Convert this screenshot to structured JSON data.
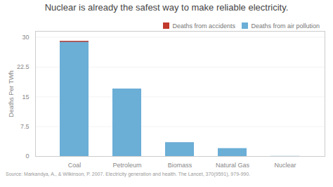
{
  "chart_data": {
    "type": "bar",
    "title": "Nuclear is already the safest way to make reliable electricity.",
    "ylabel": "Deaths Per TWh",
    "source": "Source: Markandya, A., & Wilkinson, P. 2007. Electricity generation and health. The Lancet, 370(9591), 979-990.",
    "categories": [
      "Coal",
      "Petroleum",
      "Biomass",
      "Natural Gas",
      "Nuclear"
    ],
    "series": [
      {
        "name": "Deaths from accidents",
        "color": "#c0392b",
        "values": [
          0.25,
          null,
          null,
          null,
          null
        ],
        "bottom": [
          28.75,
          null,
          null,
          null,
          null
        ]
      },
      {
        "name": "Deaths from air pollution",
        "color": "#6baed6",
        "values": [
          29.0,
          17.0,
          3.5,
          2.0,
          0.04
        ]
      }
    ],
    "ylim": [
      0,
      31.5
    ],
    "yticks": [
      0,
      7.5,
      15,
      22.5,
      30
    ],
    "grid": true,
    "legend": "upper right"
  }
}
